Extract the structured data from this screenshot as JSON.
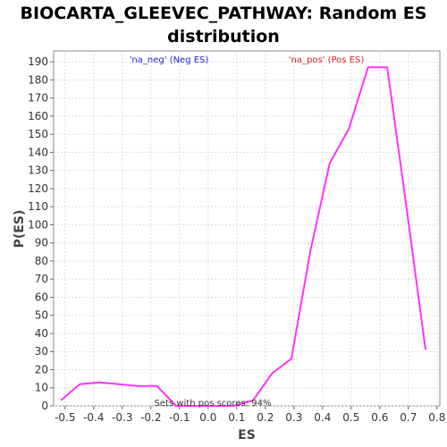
{
  "chart_data": {
    "type": "line",
    "title_line1": "BIOCARTA_GLEEVEC_PATHWAY: Random ES",
    "title_line2": "distribution",
    "xlabel": "ES",
    "ylabel": "P(ES)",
    "xlim": [
      -0.54,
      0.81
    ],
    "ylim": [
      0,
      196
    ],
    "x_ticks": [
      -0.5,
      -0.4,
      -0.3,
      -0.2,
      -0.1,
      0.0,
      0.1,
      0.2,
      0.3,
      0.4,
      0.5,
      0.6,
      0.7,
      0.8
    ],
    "x_tick_labels": [
      "-0.5",
      "-0.4",
      "-0.3",
      "-0.2",
      "-0.1",
      "0.0",
      "0.1",
      "0.2",
      "0.3",
      "0.4",
      "0.5",
      "0.6",
      "0.7",
      "0.8"
    ],
    "y_ticks": [
      0,
      10,
      20,
      30,
      40,
      50,
      60,
      70,
      80,
      90,
      100,
      110,
      120,
      130,
      140,
      150,
      160,
      170,
      180,
      190
    ],
    "grid": true,
    "series": [
      {
        "color": "#ff33ff",
        "x": [
          -0.515,
          -0.448,
          -0.381,
          -0.313,
          -0.246,
          -0.179,
          -0.112,
          -0.045,
          0.022,
          0.089,
          0.157,
          0.224,
          0.291,
          0.358,
          0.425,
          0.492,
          0.559,
          0.626,
          0.693,
          0.76
        ],
        "y": [
          3,
          12,
          13,
          12,
          11,
          11,
          0,
          0,
          0,
          0,
          3,
          18,
          26,
          86,
          134,
          153,
          187,
          187,
          110,
          31
        ]
      }
    ],
    "annotations": {
      "neg_label": "'na_neg' (Neg ES)",
      "neg_color": "#2222dd",
      "pos_label": "'na_pos' (Pos ES)",
      "pos_color": "#dd2222",
      "footer": "Sets with pos scores: 94%"
    }
  }
}
